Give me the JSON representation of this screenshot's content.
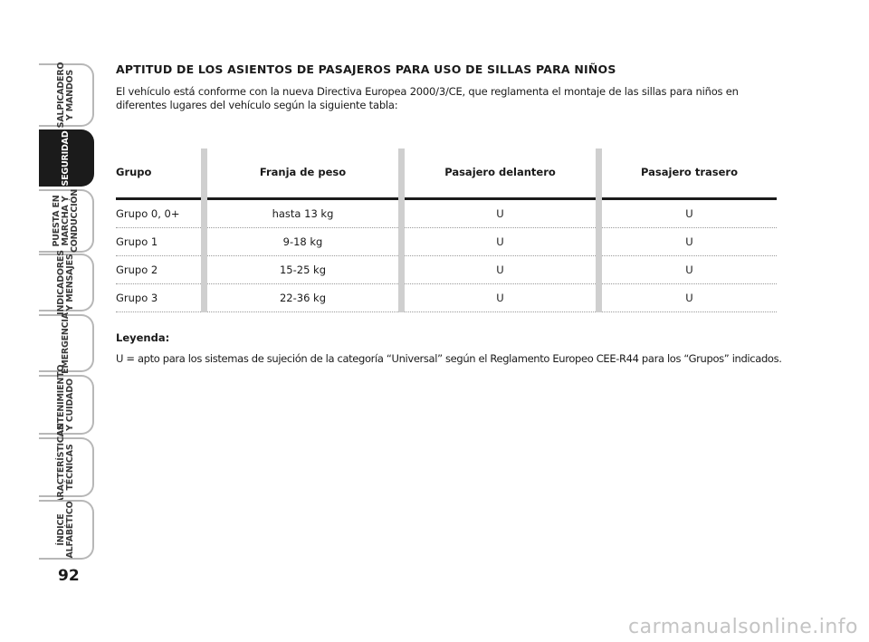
{
  "sidebar": {
    "tabs": [
      {
        "label": "SALPICADERO\nY MANDOS",
        "active": false
      },
      {
        "label": "SEGURIDAD",
        "active": true
      },
      {
        "label": "PUESTA EN\nMARCHA Y\nCONDUCCIÓN",
        "active": false
      },
      {
        "label": "INDICADORES\nY MENSAJES",
        "active": false
      },
      {
        "label": "EMERGENCIA",
        "active": false
      },
      {
        "label": "MANTENIMIENTO\nY CUIDADO",
        "active": false
      },
      {
        "label": "CARACTERÍSTICAS\nTÉCNICAS",
        "active": false
      },
      {
        "label": "ÍNDICE\nALFABÉTICO",
        "active": false
      }
    ],
    "page_number": "92"
  },
  "content": {
    "title": "APTITUD DE LOS ASIENTOS DE PASAJEROS PARA USO DE SILLAS PARA NIÑOS",
    "intro": "El vehículo está conforme con la nueva Directiva Europea 2000/3/CE, que reglamenta el montaje de las sillas para niños en diferentes lugares del vehículo según la siguiente tabla:",
    "table": {
      "headers": [
        "Grupo",
        "Franja de peso",
        "Pasajero delantero",
        "Pasajero trasero"
      ],
      "rows": [
        [
          "Grupo 0, 0+",
          "hasta 13 kg",
          "U",
          "U"
        ],
        [
          "Grupo 1",
          "9-18 kg",
          "U",
          "U"
        ],
        [
          "Grupo 2",
          "15-25 kg",
          "U",
          "U"
        ],
        [
          "Grupo 3",
          "22-36 kg",
          "U",
          "U"
        ]
      ]
    },
    "legend_title": "Leyenda:",
    "legend_text": "U = apto para los sistemas de sujeción de la categoría “Universal” según el Reglamento Europeo CEE-R44 para los “Grupos” indicados."
  },
  "watermark": "carmanualsonline.info",
  "colors": {
    "active_tab": "#1b1b1b",
    "tab_border": "#b7b7b7",
    "column_divider": "#cfcfcf"
  }
}
